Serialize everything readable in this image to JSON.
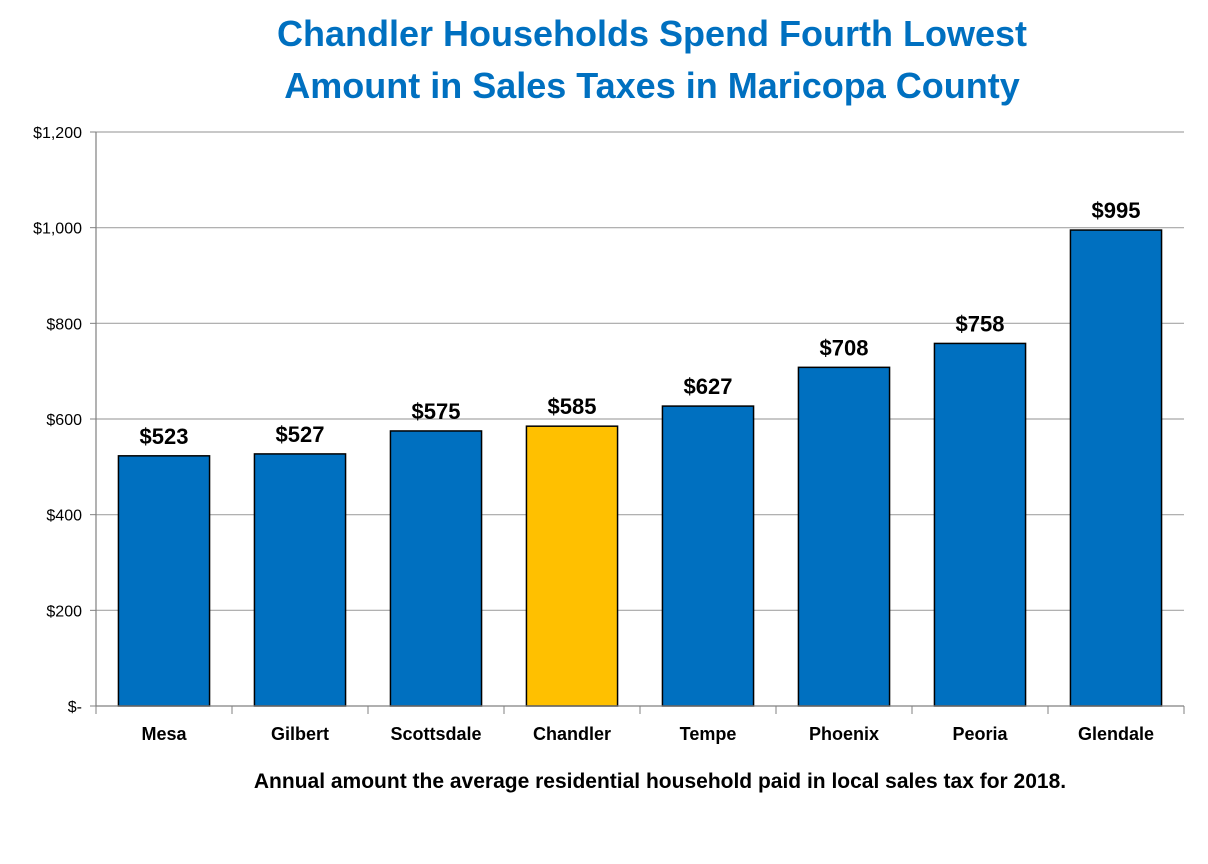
{
  "chart_data": {
    "type": "bar",
    "title": "Chandler Households Spend Fourth Lowest Amount in Sales Taxes in Maricopa County",
    "title_lines": [
      "Chandler Households Spend Fourth Lowest",
      "Amount in Sales Taxes in Maricopa County"
    ],
    "categories": [
      "Mesa",
      "Gilbert",
      "Scottsdale",
      "Chandler",
      "Tempe",
      "Phoenix",
      "Peoria",
      "Glendale"
    ],
    "values": [
      523,
      527,
      575,
      585,
      627,
      708,
      758,
      995
    ],
    "data_labels": [
      "$523",
      "$527",
      "$575",
      "$585",
      "$627",
      "$708",
      "$758",
      "$995"
    ],
    "highlight_category": "Chandler",
    "colors": {
      "bar": "#0070c0",
      "highlight": "#ffc000",
      "title": "#0070c0",
      "grid": "#a6a6a6"
    },
    "ylim": [
      0,
      1200
    ],
    "yticks": [
      0,
      200,
      400,
      600,
      800,
      1000,
      1200
    ],
    "ytick_labels": [
      "$-",
      "$200",
      "$400",
      "$600",
      "$800",
      "$1,000",
      "$1,200"
    ],
    "grid": true,
    "legend": "none",
    "xlabel": "Annual amount the average residential household paid in local sales tax for 2018.",
    "ylabel": ""
  }
}
